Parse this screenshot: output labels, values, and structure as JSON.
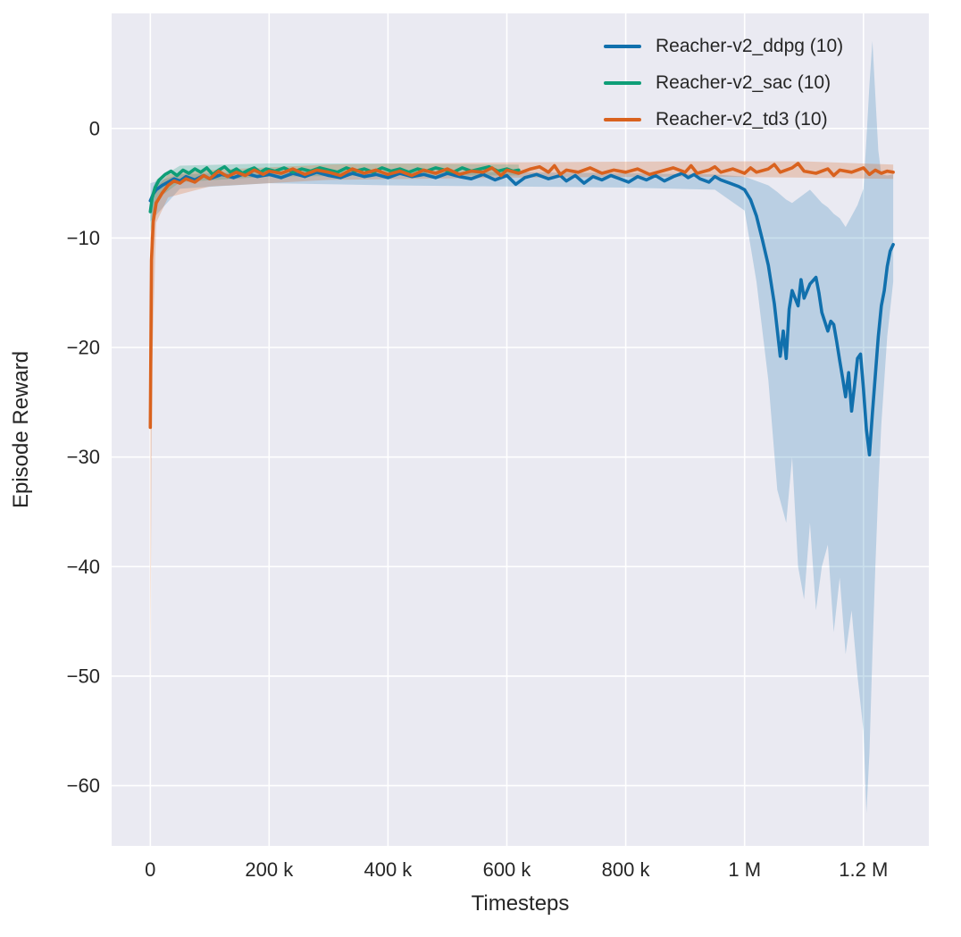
{
  "colors": {
    "axes_background": "#eaeaf2",
    "grid": "#ffffff",
    "text": "#262626",
    "ddpg": "#1170ad",
    "sac": "#0e9e77",
    "td3": "#d9621e"
  },
  "chart_data": {
    "type": "line",
    "title": "",
    "xlabel": "Timesteps",
    "ylabel": "Episode Reward",
    "grid": true,
    "legend_position": "upper right",
    "x_scale": 1000,
    "xlim": [
      -65,
      1310
    ],
    "ylim": [
      -65.5,
      10.5
    ],
    "x_ticks": [
      {
        "v": 0,
        "label": "0"
      },
      {
        "v": 200,
        "label": "200 k"
      },
      {
        "v": 400,
        "label": "400 k"
      },
      {
        "v": 600,
        "label": "600 k"
      },
      {
        "v": 800,
        "label": "800 k"
      },
      {
        "v": 1000,
        "label": "1 M"
      },
      {
        "v": 1200,
        "label": "1.2 M"
      }
    ],
    "y_ticks": [
      {
        "v": 0,
        "label": "0"
      },
      {
        "v": -10,
        "label": "−10"
      },
      {
        "v": -20,
        "label": "−20"
      },
      {
        "v": -30,
        "label": "−30"
      },
      {
        "v": -40,
        "label": "−40"
      },
      {
        "v": -50,
        "label": "−50"
      },
      {
        "v": -60,
        "label": "−60"
      }
    ],
    "series": [
      {
        "label": "Reacher-v2_ddpg (10)",
        "color": "#1170ad",
        "band_opacity": 0.22,
        "points": [
          [
            0,
            -6.6
          ],
          [
            5,
            -6.0
          ],
          [
            10,
            -5.6
          ],
          [
            20,
            -5.2
          ],
          [
            30,
            -4.9
          ],
          [
            40,
            -4.6
          ],
          [
            50,
            -4.8
          ],
          [
            60,
            -4.4
          ],
          [
            75,
            -4.7
          ],
          [
            90,
            -4.3
          ],
          [
            100,
            -4.6
          ],
          [
            120,
            -4.2
          ],
          [
            140,
            -4.5
          ],
          [
            160,
            -4.1
          ],
          [
            180,
            -4.4
          ],
          [
            200,
            -4.2
          ],
          [
            220,
            -4.5
          ],
          [
            240,
            -4.1
          ],
          [
            260,
            -4.4
          ],
          [
            280,
            -4.0
          ],
          [
            300,
            -4.3
          ],
          [
            320,
            -4.5
          ],
          [
            340,
            -4.1
          ],
          [
            360,
            -4.4
          ],
          [
            380,
            -4.2
          ],
          [
            400,
            -4.5
          ],
          [
            420,
            -4.1
          ],
          [
            440,
            -4.4
          ],
          [
            460,
            -4.2
          ],
          [
            480,
            -4.5
          ],
          [
            500,
            -4.1
          ],
          [
            520,
            -4.4
          ],
          [
            540,
            -4.6
          ],
          [
            560,
            -4.2
          ],
          [
            580,
            -4.7
          ],
          [
            600,
            -4.3
          ],
          [
            615,
            -5.1
          ],
          [
            630,
            -4.5
          ],
          [
            650,
            -4.2
          ],
          [
            670,
            -4.6
          ],
          [
            690,
            -4.3
          ],
          [
            700,
            -4.8
          ],
          [
            715,
            -4.3
          ],
          [
            730,
            -5.0
          ],
          [
            745,
            -4.4
          ],
          [
            760,
            -4.7
          ],
          [
            775,
            -4.3
          ],
          [
            790,
            -4.6
          ],
          [
            805,
            -4.9
          ],
          [
            820,
            -4.4
          ],
          [
            835,
            -4.7
          ],
          [
            850,
            -4.3
          ],
          [
            865,
            -4.8
          ],
          [
            880,
            -4.4
          ],
          [
            895,
            -4.1
          ],
          [
            905,
            -4.5
          ],
          [
            915,
            -4.2
          ],
          [
            925,
            -4.6
          ],
          [
            940,
            -4.9
          ],
          [
            950,
            -4.4
          ],
          [
            960,
            -4.7
          ],
          [
            975,
            -5.0
          ],
          [
            990,
            -5.3
          ],
          [
            1000,
            -5.6
          ],
          [
            1010,
            -6.5
          ],
          [
            1020,
            -8.0
          ],
          [
            1030,
            -10.2
          ],
          [
            1040,
            -12.5
          ],
          [
            1050,
            -16.0
          ],
          [
            1060,
            -20.8
          ],
          [
            1065,
            -18.5
          ],
          [
            1070,
            -21.0
          ],
          [
            1075,
            -16.5
          ],
          [
            1080,
            -14.8
          ],
          [
            1090,
            -16.2
          ],
          [
            1095,
            -13.8
          ],
          [
            1100,
            -15.5
          ],
          [
            1110,
            -14.2
          ],
          [
            1120,
            -13.6
          ],
          [
            1125,
            -15.0
          ],
          [
            1130,
            -16.8
          ],
          [
            1140,
            -18.5
          ],
          [
            1145,
            -17.6
          ],
          [
            1150,
            -17.9
          ],
          [
            1155,
            -19.5
          ],
          [
            1160,
            -21.2
          ],
          [
            1165,
            -22.8
          ],
          [
            1170,
            -24.5
          ],
          [
            1175,
            -22.3
          ],
          [
            1180,
            -25.8
          ],
          [
            1185,
            -23.5
          ],
          [
            1190,
            -21.0
          ],
          [
            1195,
            -20.6
          ],
          [
            1200,
            -23.8
          ],
          [
            1205,
            -27.5
          ],
          [
            1210,
            -29.8
          ],
          [
            1215,
            -26.0
          ],
          [
            1220,
            -22.5
          ],
          [
            1225,
            -19.0
          ],
          [
            1230,
            -16.2
          ],
          [
            1235,
            -14.8
          ],
          [
            1240,
            -12.6
          ],
          [
            1245,
            -11.2
          ],
          [
            1250,
            -10.6
          ]
        ],
        "band": [
          [
            0,
            -8.5,
            -5.0
          ],
          [
            50,
            -5.5,
            -4.2
          ],
          [
            200,
            -5.0,
            -3.9
          ],
          [
            400,
            -5.2,
            -4.0
          ],
          [
            600,
            -5.3,
            -4.0
          ],
          [
            800,
            -5.4,
            -4.1
          ],
          [
            950,
            -5.6,
            -4.2
          ],
          [
            1000,
            -7.5,
            -4.4
          ],
          [
            1020,
            -14,
            -4.8
          ],
          [
            1040,
            -23,
            -5.2
          ],
          [
            1055,
            -33,
            -5.8
          ],
          [
            1070,
            -36,
            -6.5
          ],
          [
            1080,
            -30,
            -6.8
          ],
          [
            1090,
            -40,
            -6.4
          ],
          [
            1100,
            -43,
            -6.0
          ],
          [
            1110,
            -36,
            -5.6
          ],
          [
            1120,
            -44,
            -6.2
          ],
          [
            1130,
            -40,
            -6.8
          ],
          [
            1140,
            -38,
            -7.2
          ],
          [
            1150,
            -46,
            -7.8
          ],
          [
            1160,
            -41,
            -8.2
          ],
          [
            1170,
            -48,
            -9.0
          ],
          [
            1180,
            -44,
            -8.0
          ],
          [
            1190,
            -50,
            -7.0
          ],
          [
            1200,
            -55,
            -5.5
          ],
          [
            1205,
            -62.5,
            -1.0
          ],
          [
            1210,
            -57,
            4.0
          ],
          [
            1215,
            -48,
            8.0
          ],
          [
            1220,
            -40,
            3.0
          ],
          [
            1225,
            -33,
            -2.0
          ],
          [
            1230,
            -27,
            -4.2
          ],
          [
            1240,
            -19,
            -4.3
          ],
          [
            1250,
            -14,
            -4.2
          ]
        ]
      },
      {
        "label": "Reacher-v2_sac (10)",
        "color": "#0e9e77",
        "band_opacity": 0.25,
        "points": [
          [
            0,
            -7.6
          ],
          [
            3,
            -6.4
          ],
          [
            8,
            -5.4
          ],
          [
            15,
            -4.7
          ],
          [
            25,
            -4.2
          ],
          [
            35,
            -3.9
          ],
          [
            45,
            -4.3
          ],
          [
            55,
            -3.8
          ],
          [
            65,
            -4.1
          ],
          [
            75,
            -3.7
          ],
          [
            85,
            -4.0
          ],
          [
            95,
            -3.6
          ],
          [
            105,
            -4.2
          ],
          [
            115,
            -3.8
          ],
          [
            125,
            -3.5
          ],
          [
            135,
            -4.0
          ],
          [
            145,
            -3.7
          ],
          [
            155,
            -4.1
          ],
          [
            165,
            -3.8
          ],
          [
            175,
            -3.6
          ],
          [
            185,
            -4.0
          ],
          [
            195,
            -3.7
          ],
          [
            210,
            -3.9
          ],
          [
            225,
            -3.6
          ],
          [
            240,
            -4.0
          ],
          [
            255,
            -3.7
          ],
          [
            270,
            -3.9
          ],
          [
            285,
            -3.6
          ],
          [
            300,
            -3.8
          ],
          [
            315,
            -4.0
          ],
          [
            330,
            -3.6
          ],
          [
            345,
            -3.9
          ],
          [
            360,
            -3.7
          ],
          [
            375,
            -4.0
          ],
          [
            390,
            -3.6
          ],
          [
            405,
            -3.9
          ],
          [
            420,
            -3.7
          ],
          [
            435,
            -4.0
          ],
          [
            450,
            -3.7
          ],
          [
            465,
            -3.9
          ],
          [
            480,
            -3.6
          ],
          [
            495,
            -3.8
          ],
          [
            510,
            -4.0
          ],
          [
            525,
            -3.6
          ],
          [
            540,
            -3.9
          ],
          [
            555,
            -3.7
          ],
          [
            570,
            -3.5
          ],
          [
            585,
            -3.9
          ],
          [
            600,
            -3.7
          ],
          [
            610,
            -3.9
          ],
          [
            620,
            -3.8
          ]
        ],
        "band": [
          [
            0,
            -9.5,
            -6.2
          ],
          [
            10,
            -6.5,
            -4.7
          ],
          [
            50,
            -4.9,
            -3.4
          ],
          [
            200,
            -4.4,
            -3.2
          ],
          [
            400,
            -4.3,
            -3.2
          ],
          [
            620,
            -4.3,
            -3.3
          ]
        ]
      },
      {
        "label": "Reacher-v2_td3 (10)",
        "color": "#d9621e",
        "band_opacity": 0.25,
        "points": [
          [
            0,
            -27.3
          ],
          [
            2,
            -12.0
          ],
          [
            5,
            -8.5
          ],
          [
            10,
            -6.8
          ],
          [
            20,
            -5.9
          ],
          [
            30,
            -5.2
          ],
          [
            40,
            -4.8
          ],
          [
            50,
            -5.0
          ],
          [
            60,
            -4.6
          ],
          [
            75,
            -4.9
          ],
          [
            90,
            -4.3
          ],
          [
            100,
            -4.6
          ],
          [
            115,
            -3.9
          ],
          [
            130,
            -4.4
          ],
          [
            145,
            -4.0
          ],
          [
            160,
            -4.3
          ],
          [
            175,
            -3.8
          ],
          [
            190,
            -4.2
          ],
          [
            200,
            -3.9
          ],
          [
            220,
            -4.1
          ],
          [
            240,
            -3.7
          ],
          [
            260,
            -4.2
          ],
          [
            280,
            -3.8
          ],
          [
            300,
            -4.0
          ],
          [
            320,
            -4.3
          ],
          [
            340,
            -3.7
          ],
          [
            360,
            -4.1
          ],
          [
            380,
            -3.8
          ],
          [
            400,
            -4.2
          ],
          [
            420,
            -3.9
          ],
          [
            440,
            -4.3
          ],
          [
            460,
            -3.8
          ],
          [
            480,
            -4.1
          ],
          [
            500,
            -3.7
          ],
          [
            520,
            -4.2
          ],
          [
            540,
            -3.9
          ],
          [
            560,
            -4.0
          ],
          [
            575,
            -3.6
          ],
          [
            590,
            -4.3
          ],
          [
            600,
            -3.8
          ],
          [
            620,
            -4.1
          ],
          [
            640,
            -3.7
          ],
          [
            655,
            -3.5
          ],
          [
            670,
            -4.0
          ],
          [
            680,
            -3.4
          ],
          [
            690,
            -4.2
          ],
          [
            700,
            -3.8
          ],
          [
            720,
            -4.0
          ],
          [
            740,
            -3.6
          ],
          [
            760,
            -4.1
          ],
          [
            780,
            -3.8
          ],
          [
            800,
            -4.0
          ],
          [
            820,
            -3.7
          ],
          [
            840,
            -4.2
          ],
          [
            860,
            -3.9
          ],
          [
            880,
            -3.6
          ],
          [
            900,
            -4.0
          ],
          [
            910,
            -3.4
          ],
          [
            920,
            -4.1
          ],
          [
            940,
            -3.8
          ],
          [
            950,
            -3.5
          ],
          [
            960,
            -4.0
          ],
          [
            980,
            -3.7
          ],
          [
            1000,
            -4.1
          ],
          [
            1010,
            -3.6
          ],
          [
            1020,
            -4.0
          ],
          [
            1040,
            -3.7
          ],
          [
            1050,
            -3.3
          ],
          [
            1060,
            -4.0
          ],
          [
            1080,
            -3.6
          ],
          [
            1090,
            -3.2
          ],
          [
            1100,
            -3.9
          ],
          [
            1120,
            -4.1
          ],
          [
            1140,
            -3.7
          ],
          [
            1150,
            -4.3
          ],
          [
            1160,
            -3.8
          ],
          [
            1180,
            -4.0
          ],
          [
            1200,
            -3.6
          ],
          [
            1210,
            -4.2
          ],
          [
            1220,
            -3.8
          ],
          [
            1230,
            -4.1
          ],
          [
            1240,
            -3.9
          ],
          [
            1250,
            -4.0
          ]
        ],
        "band": [
          [
            0,
            -51,
            -10
          ],
          [
            3,
            -22,
            -7.5
          ],
          [
            10,
            -8.6,
            -5.4
          ],
          [
            30,
            -6.3,
            -4.2
          ],
          [
            100,
            -5.3,
            -3.8
          ],
          [
            300,
            -4.7,
            -3.3
          ],
          [
            600,
            -4.5,
            -3.1
          ],
          [
            900,
            -4.4,
            -3.0
          ],
          [
            1100,
            -4.5,
            -3.0
          ],
          [
            1250,
            -4.6,
            -3.3
          ]
        ]
      }
    ]
  }
}
